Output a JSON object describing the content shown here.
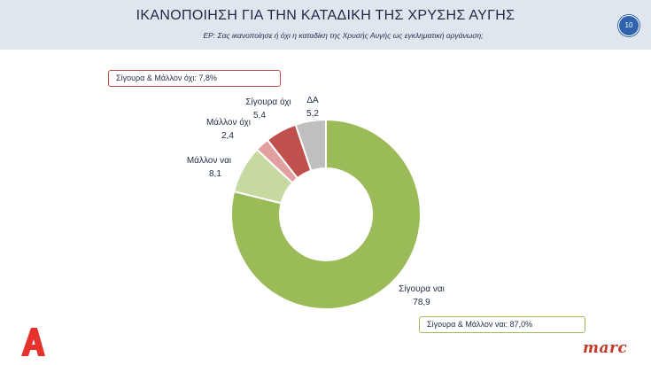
{
  "header": {
    "title": "ΙΚΑΝΟΠΟΙΗΣΗ ΓΙΑ ΤΗΝ ΚΑΤΑΔΙΚΗ ΤΗΣ ΧΡΥΣΗΣ ΑΥΓΗΣ",
    "subtitle": "ΕΡ: Σας ικανοποίησε ή όχι η καταδίκη της Χρυσής Αυγής ως εγκληματική οργάνωση;",
    "page_number": "10"
  },
  "summary_boxes": {
    "no_total": "Σίγουρα & Μάλλον όχι: 7,8%",
    "yes_total": "Σίγουρα & Μάλλον ναι: 87,0%"
  },
  "chart_data": {
    "type": "pie",
    "variant": "donut",
    "categories": [
      "Σίγουρα ναι",
      "Μάλλον ναι",
      "Μάλλον όχι",
      "Σίγουρα όχι",
      "ΔΑ"
    ],
    "values": [
      78.9,
      8.1,
      2.4,
      5.4,
      5.2
    ],
    "value_labels": [
      "78,9",
      "8,1",
      "2,4",
      "5,4",
      "5,2"
    ],
    "colors": [
      "#9bbb59",
      "#c6d9a0",
      "#e0a09f",
      "#c0504d",
      "#bfbfbf"
    ]
  },
  "branding": {
    "left_logo": "alpha-logo",
    "right_logo": "marc"
  }
}
